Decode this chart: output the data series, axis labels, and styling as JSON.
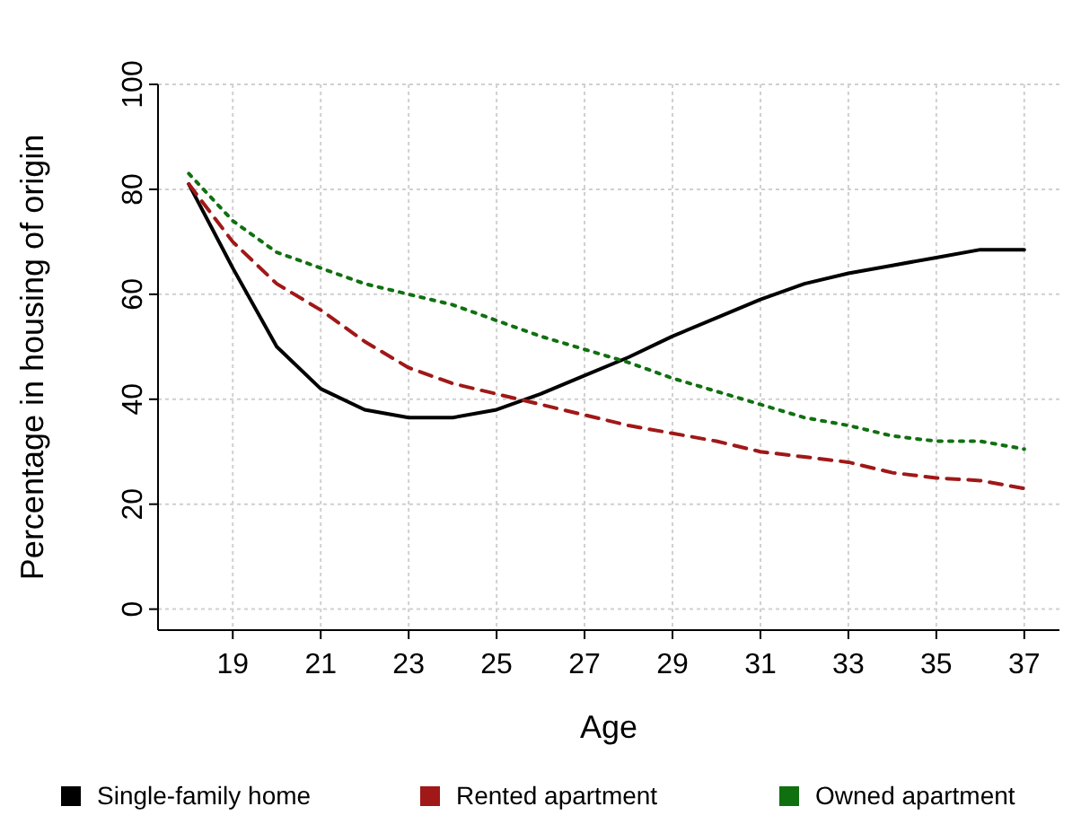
{
  "chart_data": {
    "type": "line",
    "xlabel": "Age",
    "ylabel": "Percentage in housing of origin",
    "x": [
      18,
      19,
      20,
      21,
      22,
      23,
      24,
      25,
      26,
      27,
      28,
      29,
      30,
      31,
      32,
      33,
      34,
      35,
      36,
      37
    ],
    "xlim": [
      17.3,
      37.8
    ],
    "xticks": [
      19,
      21,
      23,
      25,
      27,
      29,
      31,
      33,
      35,
      37
    ],
    "ylim": [
      -4,
      100
    ],
    "yticks": [
      0,
      20,
      40,
      60,
      80,
      100
    ],
    "grid": true,
    "legend": "bottom",
    "marker": "none",
    "series": [
      {
        "name": "Single-family home",
        "color": "#000000",
        "line_style": "solid",
        "values": [
          81,
          65,
          50,
          42,
          38,
          36.5,
          36.5,
          38,
          41,
          44.5,
          48,
          52,
          55.5,
          59,
          62,
          64,
          65.5,
          67,
          68.5,
          68.5
        ]
      },
      {
        "name": "Rented apartment",
        "color": "#a01818",
        "line_style": "dashed",
        "values": [
          81,
          70,
          62,
          57,
          51,
          46,
          43,
          41,
          39,
          37,
          35,
          33.5,
          32,
          30,
          29,
          28,
          26,
          25,
          24.5,
          23
        ]
      },
      {
        "name": "Owned apartment",
        "color": "#107010",
        "line_style": "dotted",
        "values": [
          83,
          74,
          68,
          65,
          62,
          60,
          58,
          55,
          52,
          49.5,
          47,
          44,
          41.5,
          39,
          36.5,
          35,
          33,
          32,
          32,
          30.5
        ]
      }
    ]
  }
}
